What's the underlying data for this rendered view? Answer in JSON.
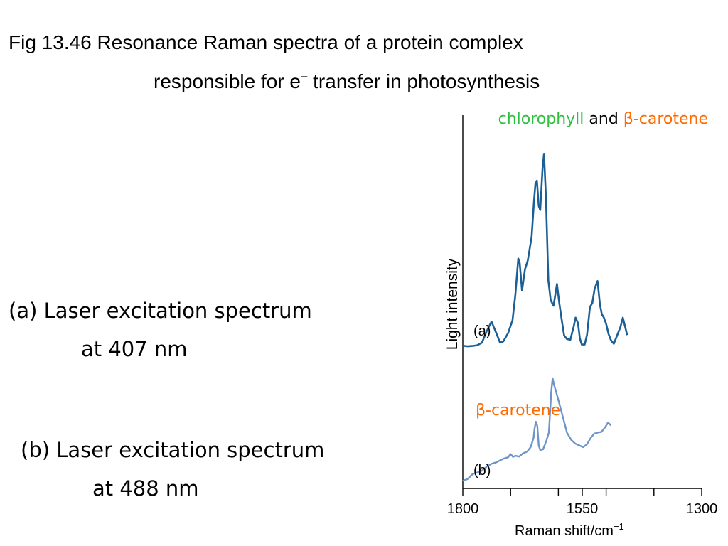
{
  "title": {
    "line1": "Fig 13.46  Resonance Raman spectra of a protein complex",
    "line2_prefix": "responsible for e",
    "line2_sup": "–",
    "line2_suffix": " transfer in photosynthesis"
  },
  "captions": {
    "a_line1": "(a)  Laser excitation spectrum",
    "a_line2": "at 407 nm",
    "b_line1": "(b)  Laser excitation spectrum",
    "b_line2": "at 488 nm"
  },
  "colors": {
    "series_a": "#1a5f96",
    "series_b": "#6f95c8",
    "chlorophyll": "#2fbf3f",
    "carotene": "#ff6a00",
    "axis": "#000000"
  },
  "chart_data": {
    "type": "line",
    "xlabel": "Raman shift/cm",
    "xlabel_sup": "−1",
    "ylabel": "Light intensity",
    "xlim": [
      1800,
      1300
    ],
    "ylim": [
      0,
      100
    ],
    "x_ticks": [
      1800,
      1750,
      1700,
      1650,
      1600,
      1550,
      1500,
      1450,
      1400,
      1350,
      1300
    ],
    "x_tick_labels": [
      "1800",
      "1550",
      "1300"
    ],
    "grid": false,
    "annotations": {
      "top_chlorophyll": "chlorophyll",
      "top_and": "and",
      "top_carotene": "β-carotene",
      "mid_carotene": "β-carotene"
    },
    "series": [
      {
        "label": "(a)",
        "points": [
          [
            1800,
            39
          ],
          [
            1790,
            38.8
          ],
          [
            1780,
            38.9
          ],
          [
            1770,
            39.1
          ],
          [
            1760,
            39.8
          ],
          [
            1750,
            43
          ],
          [
            1740,
            45.6
          ],
          [
            1730,
            42.5
          ],
          [
            1722,
            39.8
          ],
          [
            1715,
            40.2
          ],
          [
            1705,
            42.5
          ],
          [
            1696,
            46
          ],
          [
            1690,
            53
          ],
          [
            1684,
            63
          ],
          [
            1681,
            61.8
          ],
          [
            1676,
            54.2
          ],
          [
            1670,
            60
          ],
          [
            1664,
            62.5
          ],
          [
            1656,
            69
          ],
          [
            1651,
            78.8
          ],
          [
            1648,
            83.6
          ],
          [
            1645,
            84.5
          ],
          [
            1641,
            77.5
          ],
          [
            1638,
            76.4
          ],
          [
            1633,
            88
          ],
          [
            1630,
            91.9
          ],
          [
            1626,
            80
          ],
          [
            1621,
            57
          ],
          [
            1616,
            51.5
          ],
          [
            1610,
            50
          ],
          [
            1603,
            56
          ],
          [
            1598,
            50.7
          ],
          [
            1592,
            45.2
          ],
          [
            1588,
            41.8
          ],
          [
            1582,
            40.8
          ],
          [
            1575,
            40.6
          ],
          [
            1568,
            44.2
          ],
          [
            1564,
            46.7
          ],
          [
            1559,
            45.2
          ],
          [
            1555,
            41
          ],
          [
            1551,
            39.3
          ],
          [
            1545,
            39.3
          ],
          [
            1540,
            42
          ],
          [
            1534,
            49.6
          ],
          [
            1529,
            50.7
          ],
          [
            1524,
            54.8
          ],
          [
            1518,
            56.8
          ],
          [
            1513,
            50.3
          ],
          [
            1509,
            47.6
          ],
          [
            1505,
            46.8
          ],
          [
            1500,
            45
          ],
          [
            1495,
            42.2
          ],
          [
            1490,
            40.5
          ],
          [
            1484,
            39.5
          ],
          [
            1478,
            41.5
          ],
          [
            1470,
            44.2
          ],
          [
            1465,
            46.7
          ],
          [
            1461,
            44.6
          ],
          [
            1456,
            41.9
          ]
        ]
      },
      {
        "label": "(b)",
        "points": [
          [
            1800,
            1.7
          ],
          [
            1790,
            2.2
          ],
          [
            1780,
            3.5
          ],
          [
            1770,
            4
          ],
          [
            1760,
            4.5
          ],
          [
            1750,
            5.6
          ],
          [
            1740,
            6.4
          ],
          [
            1730,
            6.8
          ],
          [
            1715,
            7.8
          ],
          [
            1705,
            8.2
          ],
          [
            1700,
            9.1
          ],
          [
            1695,
            8.3
          ],
          [
            1690,
            8.6
          ],
          [
            1682,
            8.4
          ],
          [
            1675,
            9.2
          ],
          [
            1665,
            9.8
          ],
          [
            1658,
            11
          ],
          [
            1652,
            13.5
          ],
          [
            1650,
            16
          ],
          [
            1647,
            18
          ],
          [
            1644,
            16.8
          ],
          [
            1641,
            11.4
          ],
          [
            1638,
            10.2
          ],
          [
            1632,
            10.4
          ],
          [
            1625,
            12.8
          ],
          [
            1620,
            15
          ],
          [
            1618,
            19
          ],
          [
            1615,
            26
          ],
          [
            1612,
            30
          ],
          [
            1609,
            28.1
          ],
          [
            1605,
            26.4
          ],
          [
            1600,
            24
          ],
          [
            1590,
            19
          ],
          [
            1582,
            15
          ],
          [
            1573,
            13
          ],
          [
            1565,
            12
          ],
          [
            1555,
            11.4
          ],
          [
            1548,
            11
          ],
          [
            1540,
            11.8
          ],
          [
            1532,
            13.6
          ],
          [
            1525,
            14.7
          ],
          [
            1518,
            15
          ],
          [
            1510,
            15.2
          ],
          [
            1502,
            16.5
          ],
          [
            1496,
            17.8
          ],
          [
            1490,
            17
          ]
        ]
      }
    ]
  }
}
